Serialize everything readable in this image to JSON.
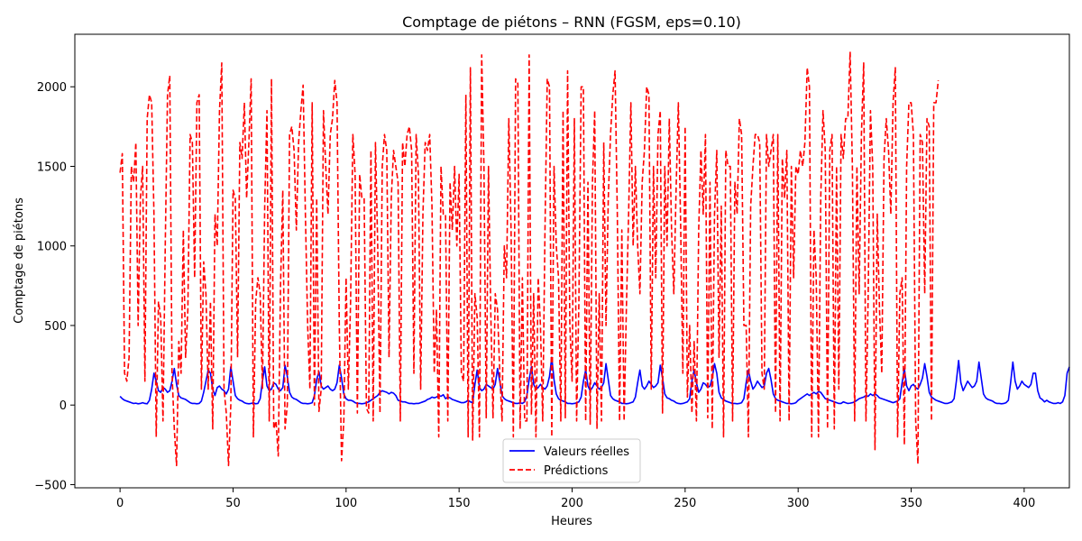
{
  "chart_data": {
    "type": "line",
    "title": "Comptage de piétons – RNN (FGSM, eps=0.10)",
    "xlabel": "Heures",
    "ylabel": "Comptage de piétons",
    "xlim": [
      -20,
      420
    ],
    "ylim": [
      -520,
      2330
    ],
    "xticks": [
      0,
      50,
      100,
      150,
      200,
      250,
      300,
      350,
      400
    ],
    "yticks": [
      -500,
      0,
      500,
      1000,
      1500,
      2000
    ],
    "grid": false,
    "legend_position": "lower-center",
    "series": [
      {
        "name": "Valeurs réelles",
        "color": "#0000ff",
        "style": "solid",
        "values": [
          55,
          40,
          30,
          25,
          20,
          15,
          10,
          12,
          8,
          10,
          15,
          10,
          8,
          30,
          100,
          200,
          150,
          90,
          80,
          110,
          100,
          80,
          90,
          150,
          230,
          130,
          60,
          45,
          40,
          35,
          25,
          15,
          10,
          10,
          8,
          10,
          25,
          80,
          150,
          220,
          200,
          100,
          60,
          110,
          120,
          100,
          90,
          70,
          100,
          240,
          150,
          60,
          40,
          30,
          25,
          15,
          10,
          8,
          10,
          15,
          8,
          10,
          40,
          150,
          240,
          120,
          90,
          100,
          140,
          130,
          100,
          90,
          110,
          250,
          180,
          80,
          50,
          40,
          35,
          25,
          15,
          10,
          10,
          8,
          10,
          15,
          60,
          160,
          210,
          120,
          100,
          110,
          120,
          100,
          90,
          100,
          140,
          250,
          170,
          70,
          40,
          30,
          30,
          25,
          15,
          10,
          10,
          8,
          10,
          15,
          20,
          30,
          40,
          50,
          60,
          80,
          90,
          85,
          80,
          70,
          80,
          75,
          60,
          30,
          25,
          20,
          20,
          15,
          10,
          10,
          8,
          10,
          10,
          15,
          20,
          25,
          35,
          40,
          50,
          45,
          50,
          60,
          55,
          65,
          40,
          50,
          45,
          35,
          30,
          25,
          20,
          15,
          15,
          20,
          30,
          20,
          15,
          130,
          220,
          110,
          90,
          100,
          130,
          120,
          110,
          100,
          130,
          230,
          150,
          60,
          40,
          30,
          25,
          20,
          15,
          10,
          10,
          15,
          10,
          20,
          60,
          160,
          240,
          130,
          100,
          110,
          130,
          110,
          100,
          120,
          180,
          300,
          160,
          70,
          40,
          30,
          25,
          20,
          10,
          10,
          8,
          10,
          15,
          20,
          50,
          150,
          220,
          120,
          90,
          110,
          140,
          120,
          100,
          110,
          140,
          260,
          160,
          60,
          40,
          30,
          25,
          20,
          10,
          10,
          8,
          10,
          15,
          20,
          50,
          140,
          220,
          120,
          100,
          120,
          150,
          130,
          110,
          120,
          140,
          250,
          170,
          70,
          45,
          40,
          30,
          25,
          15,
          10,
          8,
          10,
          15,
          20,
          40,
          150,
          220,
          140,
          80,
          100,
          140,
          130,
          110,
          120,
          170,
          260,
          200,
          80,
          45,
          35,
          25,
          20,
          15,
          10,
          10,
          8,
          10,
          15,
          40,
          140,
          220,
          150,
          100,
          120,
          150,
          130,
          110,
          120,
          200,
          230,
          160,
          70,
          40,
          30,
          25,
          20,
          15,
          10,
          10,
          8,
          10,
          15,
          30,
          40,
          50,
          60,
          70,
          60,
          70,
          80,
          70,
          85,
          80,
          60,
          40,
          35,
          30,
          25,
          20,
          15,
          10,
          10,
          20,
          15,
          10,
          12,
          15,
          20,
          30,
          40,
          45,
          50,
          60,
          55,
          70,
          60,
          70,
          60,
          45,
          40,
          35,
          30,
          25,
          20,
          15,
          20,
          25,
          40,
          140,
          230,
          120,
          90,
          120,
          130,
          110,
          100,
          130,
          170,
          260,
          180,
          80,
          50,
          40,
          30,
          25,
          20,
          15,
          10,
          10,
          15,
          20,
          40,
          150,
          280,
          140,
          90,
          120,
          150,
          130,
          110,
          120,
          150,
          270,
          170,
          70,
          45,
          35,
          30,
          25,
          15,
          10,
          10,
          8,
          10,
          15,
          30,
          140,
          270,
          150,
          100,
          120,
          150,
          130,
          120,
          110,
          130,
          200,
          200,
          90,
          45,
          35,
          20,
          30,
          20,
          15,
          10,
          10,
          15,
          10,
          20,
          60,
          200,
          240
        ]
      },
      {
        "name": "Prédictions",
        "color": "#ff0000",
        "style": "dashed",
        "values": [
          1460,
          1580,
          200,
          150,
          300,
          1500,
          1400,
          1650,
          500,
          1300,
          1500,
          150,
          1800,
          1950,
          1900,
          1200,
          -200,
          650,
          550,
          -100,
          1000,
          1950,
          2070,
          200,
          -150,
          -380,
          400,
          200,
          1100,
          300,
          600,
          1700,
          1650,
          800,
          1900,
          1950,
          100,
          900,
          700,
          100,
          650,
          -150,
          1200,
          1000,
          1850,
          2150,
          100,
          -50,
          -380,
          0,
          1350,
          1300,
          300,
          1650,
          1550,
          1900,
          1300,
          1650,
          2050,
          -200,
          650,
          800,
          700,
          100,
          1250,
          1850,
          -100,
          2050,
          -150,
          -100,
          -320,
          750,
          1350,
          -150,
          0,
          1700,
          1750,
          1600,
          1100,
          1650,
          1850,
          2010,
          1200,
          500,
          100,
          1900,
          0,
          1300,
          -40,
          100,
          1850,
          1500,
          1200,
          1700,
          1800,
          2040,
          1900,
          500,
          -350,
          -100,
          800,
          100,
          650,
          1700,
          1450,
          -50,
          1450,
          1300,
          1300,
          -20,
          -50,
          1600,
          -100,
          1650,
          1000,
          -50,
          1500,
          1700,
          1600,
          300,
          1300,
          1600,
          1500,
          1400,
          -100,
          1650,
          1500,
          1700,
          1750,
          1600,
          200,
          1700,
          1450,
          100,
          1200,
          1650,
          1600,
          1700,
          1250,
          200,
          600,
          -200,
          1500,
          1200,
          1200,
          -100,
          1400,
          1100,
          1500,
          1000,
          1450,
          200,
          150,
          1950,
          -200,
          2120,
          -220,
          700,
          550,
          -200,
          2200,
          1500,
          -80,
          1500,
          600,
          -80,
          700,
          600,
          200,
          -100,
          1000,
          800,
          1800,
          1100,
          -200,
          2050,
          2020,
          -150,
          800,
          -100,
          -100,
          2200,
          -60,
          700,
          -200,
          800,
          500,
          -100,
          1100,
          2050,
          2000,
          -200,
          1500,
          1000,
          800,
          -100,
          1850,
          -80,
          2100,
          500,
          150,
          1800,
          -100,
          650,
          2000,
          2000,
          -100,
          1400,
          -120,
          1400,
          1850,
          -150,
          700,
          -100,
          1650,
          500,
          1300,
          1700,
          1950,
          2100,
          1200,
          -100,
          1100,
          -100,
          600,
          1200,
          1900,
          1000,
          1500,
          1000,
          700,
          1400,
          1600,
          2000,
          1950,
          100,
          1500,
          800,
          1700,
          1850,
          -50,
          1500,
          1000,
          1800,
          1100,
          700,
          1350,
          1900,
          1150,
          200,
          1750,
          50,
          500,
          -50,
          400,
          -100,
          1100,
          1600,
          1200,
          1700,
          -80,
          1400,
          -150,
          1200,
          1600,
          300,
          1250,
          -200,
          1600,
          1500,
          1500,
          -100,
          1400,
          1200,
          1800,
          1700,
          500,
          500,
          -200,
          1250,
          1500,
          1700,
          1700,
          1650,
          200,
          100,
          1700,
          1500,
          1600,
          1700,
          -50,
          1700,
          -100,
          1550,
          1300,
          1600,
          -100,
          1500,
          800,
          1500,
          1450,
          1600,
          1500,
          1650,
          2120,
          2000,
          -200,
          1100,
          800,
          -200,
          1300,
          1850,
          1600,
          -150,
          1600,
          1700,
          -150,
          1500,
          100,
          1700,
          1550,
          1800,
          1800,
          2220,
          1500,
          -100,
          1500,
          700,
          1700,
          2150,
          -100,
          700,
          1850,
          1500,
          -280,
          1200,
          600,
          200,
          1550,
          1800,
          1600,
          1200,
          1900,
          2120,
          -200,
          700,
          800,
          -250,
          1500,
          1900,
          1900,
          1700,
          -100,
          -370,
          1700,
          1650,
          700,
          1800,
          1750,
          -100,
          1900,
          1900,
          2040
        ]
      }
    ]
  }
}
